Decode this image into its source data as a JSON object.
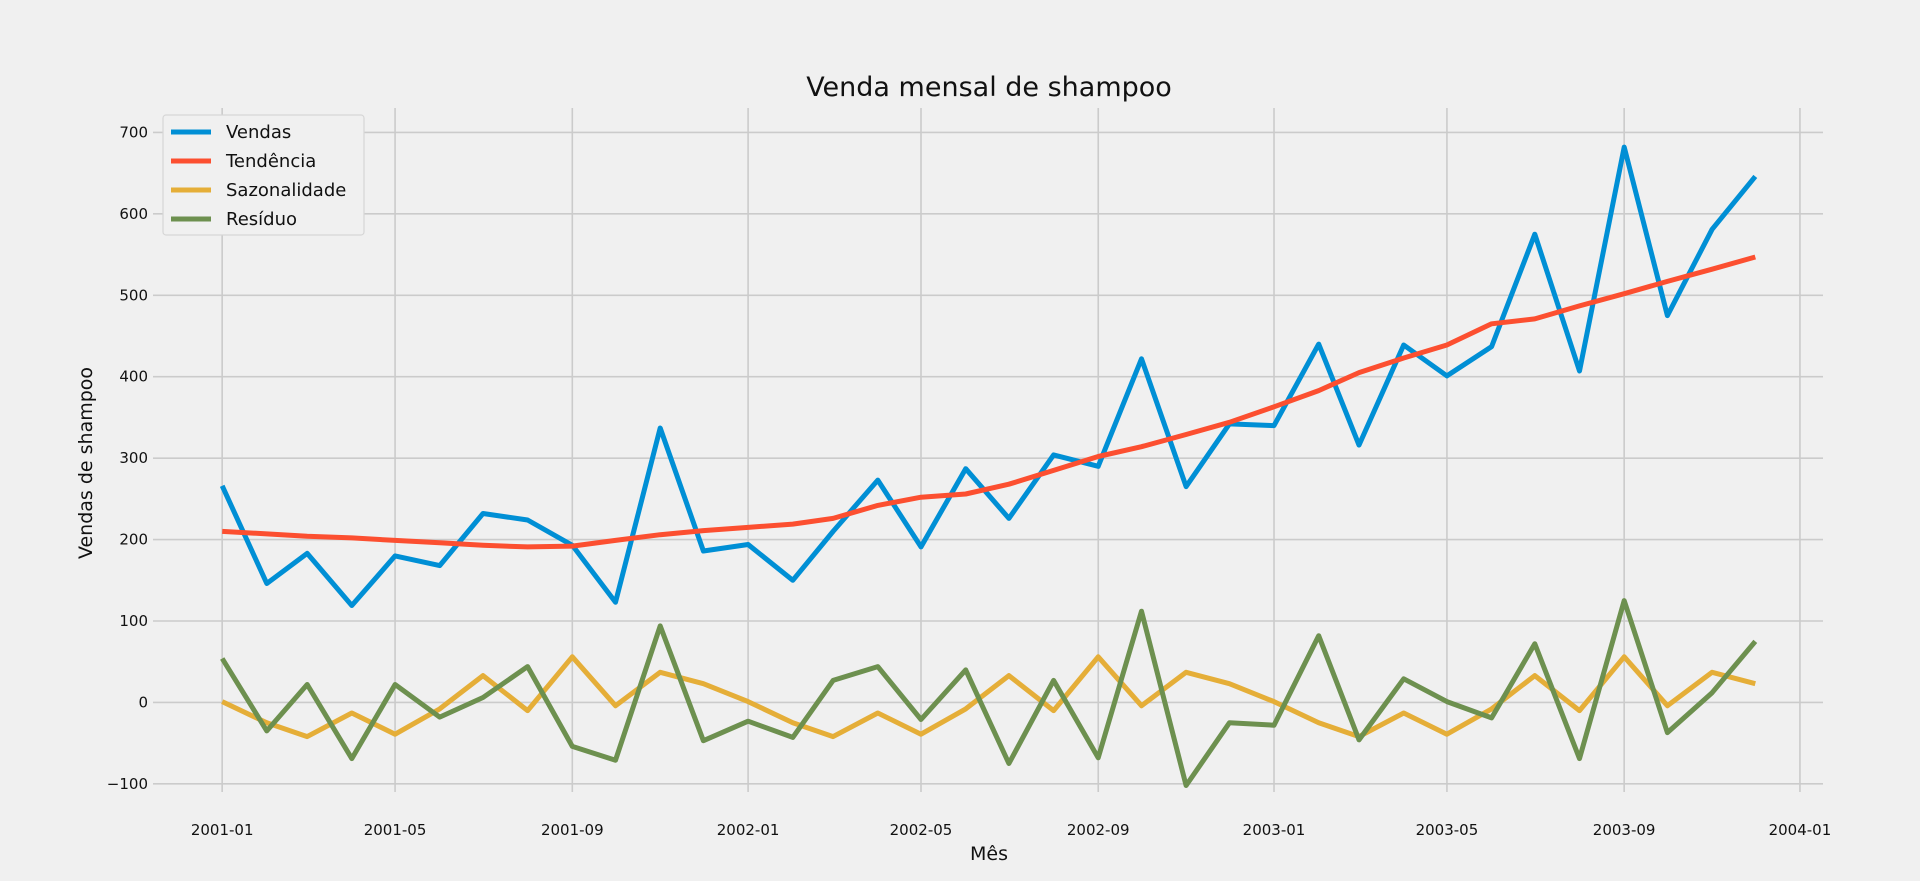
{
  "chart_data": {
    "type": "line",
    "title": "Venda mensal de shampoo",
    "xlabel": "Mês",
    "ylabel": "Vendas de shampoo",
    "x": [
      "2001-01",
      "2001-02",
      "2001-03",
      "2001-04",
      "2001-05",
      "2001-06",
      "2001-07",
      "2001-08",
      "2001-09",
      "2001-10",
      "2001-11",
      "2001-12",
      "2002-01",
      "2002-02",
      "2002-03",
      "2002-04",
      "2002-05",
      "2002-06",
      "2002-07",
      "2002-08",
      "2002-09",
      "2002-10",
      "2002-11",
      "2002-12",
      "2003-01",
      "2003-02",
      "2003-03",
      "2003-04",
      "2003-05",
      "2003-06",
      "2003-07",
      "2003-08",
      "2003-09",
      "2003-10",
      "2003-11",
      "2003-12"
    ],
    "xticks": [
      "2001-01",
      "2001-05",
      "2001-09",
      "2002-01",
      "2002-05",
      "2002-09",
      "2003-01",
      "2003-05",
      "2003-09",
      "2004-01"
    ],
    "xlim": [
      "2000-11-14",
      "2004-01-17"
    ],
    "ylim": [
      -110,
      730
    ],
    "yticks": [
      -100,
      0,
      100,
      200,
      300,
      400,
      500,
      600,
      700
    ],
    "ytick_labels": [
      "−100",
      "0",
      "100",
      "200",
      "300",
      "400",
      "500",
      "600",
      "700"
    ],
    "grid": true,
    "legend_position": "top-left",
    "series": [
      {
        "name": "Vendas",
        "color": "#008fd5",
        "values": [
          266,
          146,
          183,
          119,
          180,
          168,
          232,
          224,
          193,
          123,
          337,
          186,
          194,
          150,
          210,
          273,
          191,
          287,
          226,
          304,
          290,
          422,
          265,
          342,
          340,
          440,
          316,
          439,
          401,
          437,
          575,
          407,
          682,
          475,
          581,
          646
        ]
      },
      {
        "name": "Tendência",
        "color": "#fc4f30",
        "values": [
          210,
          207,
          204,
          202,
          199,
          196,
          193,
          191,
          192,
          199,
          206,
          211,
          215,
          219,
          226,
          242,
          252,
          256,
          268,
          285,
          302,
          314,
          329,
          344,
          363,
          383,
          405,
          423,
          439,
          465,
          471,
          487,
          502,
          517,
          532,
          547
        ]
      },
      {
        "name": "Sazonalidade",
        "color": "#e5ae38",
        "values": [
          1,
          -25,
          -42,
          -13,
          -39,
          -8,
          33,
          -10,
          56,
          -4,
          37,
          23,
          1,
          -25,
          -42,
          -13,
          -39,
          -8,
          33,
          -10,
          56,
          -4,
          37,
          23,
          1,
          -25,
          -42,
          -13,
          -39,
          -8,
          33,
          -10,
          56,
          -4,
          37,
          23
        ]
      },
      {
        "name": "Resíduo",
        "color": "#6d904f",
        "values": [
          54,
          -35,
          22,
          -69,
          22,
          -18,
          6,
          44,
          -54,
          -71,
          94,
          -47,
          -23,
          -43,
          27,
          44,
          -21,
          40,
          -75,
          27,
          -68,
          112,
          -102,
          -25,
          -28,
          82,
          -46,
          29,
          1,
          -19,
          72,
          -69,
          125,
          -37,
          12,
          75
        ]
      }
    ]
  }
}
